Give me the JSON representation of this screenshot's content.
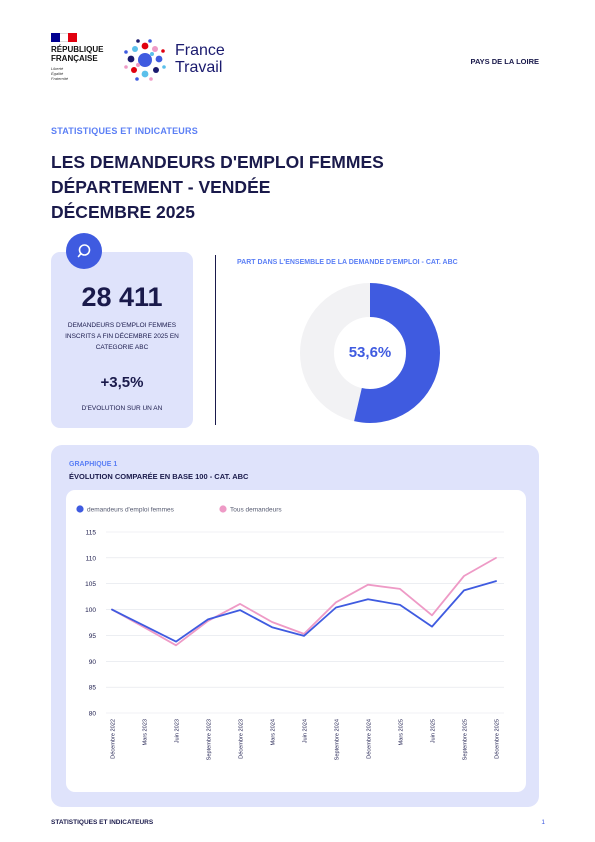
{
  "header": {
    "republique": "RÉPUBLIQUE\nFRANÇAISE",
    "motto": "Liberté\nÉgalité\nFraternité",
    "brand": "France\nTravail",
    "region": "PAYS DE LA LOIRE"
  },
  "section_label": "STATISTIQUES ET INDICATEURS",
  "title": {
    "line1": "LES DEMANDEURS D'EMPLOI FEMMES",
    "line2": "DÉPARTEMENT - VENDÉE",
    "line3": "DÉCEMBRE 2025"
  },
  "kpi": {
    "icon": "search-icon",
    "number": "28 411",
    "description": "DEMANDEURS D'EMPLOI FEMMES INSCRITS A FIN DÉCEMBRE 2025 EN CATEGORIE ABC",
    "evolution": "+3,5%",
    "evolution_label": "D'EVOLUTION SUR UN AN"
  },
  "share": {
    "title": "PART DANS L'ENSEMBLE DE LA DEMANDE D'EMPLOI - CAT. ABC",
    "value": "53,6%",
    "fraction": 0.536,
    "color_fill": "#3f5be0",
    "color_track": "#f2f2f4"
  },
  "graph": {
    "kicker": "GRAPHIQUE 1",
    "title": "ÉVOLUTION COMPARÉE EN BASE 100 - CAT. ABC"
  },
  "chart_data": {
    "type": "line",
    "x": [
      "Décembre 2022",
      "Mars 2023",
      "Juin 2023",
      "Septembre 2023",
      "Décembre 2023",
      "Mars 2024",
      "Juin 2024",
      "Septembre 2024",
      "Décembre 2024",
      "Mars 2025",
      "Juin 2025",
      "Septembre 2025",
      "Décembre 2025"
    ],
    "series": [
      {
        "name": "demandeurs d'emploi femmes",
        "color": "#3f5be0",
        "values": [
          100,
          96.9,
          93.8,
          98.1,
          99.9,
          96.6,
          94.9,
          100.4,
          102.0,
          100.9,
          96.7,
          103.7,
          105.5
        ]
      },
      {
        "name": "Tous demandeurs",
        "color": "#ee9ac6",
        "values": [
          100,
          96.6,
          93.1,
          97.8,
          101.1,
          97.6,
          95.3,
          101.4,
          104.8,
          104.0,
          98.9,
          106.5,
          110.0
        ]
      }
    ],
    "ylim": [
      80,
      115
    ],
    "yticks": [
      80,
      85,
      90,
      95,
      100,
      105,
      110,
      115
    ],
    "grid": true,
    "legend_position": "top-left"
  },
  "footer": {
    "left": "STATISTIQUES ET INDICATEURS",
    "page": "1"
  }
}
